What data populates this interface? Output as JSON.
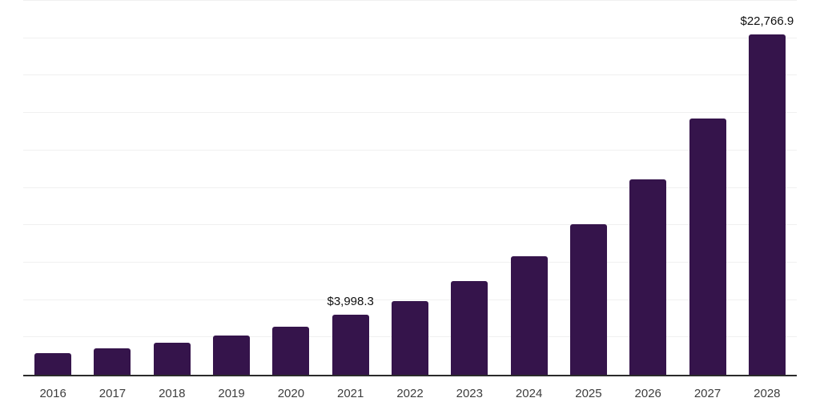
{
  "chart_data": {
    "type": "bar",
    "title": "",
    "xlabel": "",
    "ylabel": "",
    "categories": [
      "2016",
      "2017",
      "2018",
      "2019",
      "2020",
      "2021",
      "2022",
      "2023",
      "2024",
      "2025",
      "2026",
      "2027",
      "2028"
    ],
    "values": [
      1440,
      1770,
      2150,
      2630,
      3210,
      3998.3,
      4930,
      6260,
      7940,
      10080,
      13080,
      17130,
      22766.9
    ],
    "bar_labels": [
      "",
      "",
      "",
      "",
      "",
      "$3,998.3",
      "",
      "",
      "",
      "",
      "",
      "",
      "$22,766.9"
    ],
    "ylim": [
      0,
      25000
    ],
    "gridline_interval": 2500,
    "grid": true,
    "legend": false,
    "colors": {
      "bar": "#35144B",
      "axis_line": "#2B2B2B",
      "gridline": "#F0F0F0",
      "value_label_text": "#111111",
      "x_tick_text": "#3D3D3D",
      "background": "#FFFFFF"
    }
  }
}
